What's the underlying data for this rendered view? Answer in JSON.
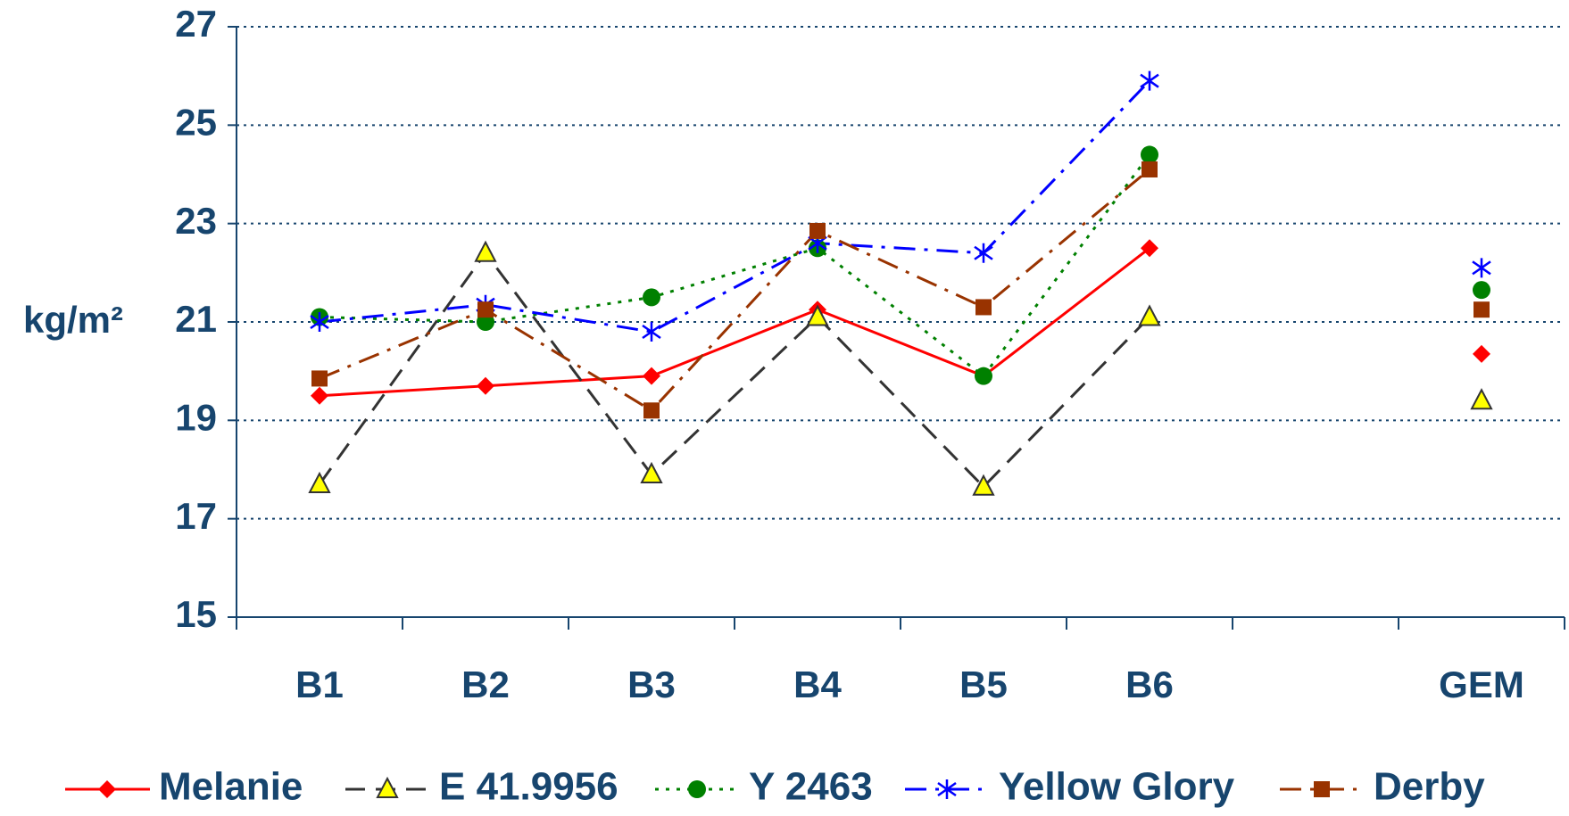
{
  "chart_data": {
    "type": "line",
    "y_label": "kg/m²",
    "categories": [
      "B1",
      "B2",
      "B3",
      "B4",
      "B5",
      "B6",
      null,
      "GEM"
    ],
    "ylim": [
      15,
      27
    ],
    "yticks": [
      15,
      17,
      19,
      21,
      23,
      25,
      27
    ],
    "grid": true,
    "legend": "bottom",
    "series": [
      {
        "name": "Melanie",
        "color": "#ff0000",
        "dash": "solid",
        "marker": "diamond",
        "values": [
          19.5,
          19.7,
          19.9,
          21.25,
          19.9,
          22.5,
          null,
          20.35
        ]
      },
      {
        "name": "E 41.9956",
        "color": "#333333",
        "dash": "dashed",
        "marker": "triangle",
        "values": [
          17.7,
          22.4,
          17.9,
          21.1,
          17.65,
          21.1,
          null,
          19.4
        ]
      },
      {
        "name": "Y 2463",
        "color": "#008000",
        "dash": "dotted",
        "marker": "circle",
        "values": [
          21.1,
          21.0,
          21.5,
          22.5,
          19.9,
          24.4,
          null,
          21.65
        ]
      },
      {
        "name": "Yellow Glory",
        "color": "#0000ff",
        "dash": "dashdot",
        "marker": "asterisk",
        "values": [
          21.0,
          21.35,
          20.8,
          22.6,
          22.4,
          25.9,
          null,
          22.1
        ]
      },
      {
        "name": "Derby",
        "color": "#993300",
        "dash": "dashdot",
        "marker": "square",
        "values": [
          19.85,
          21.25,
          19.2,
          22.85,
          21.3,
          24.1,
          null,
          21.25
        ]
      }
    ]
  }
}
